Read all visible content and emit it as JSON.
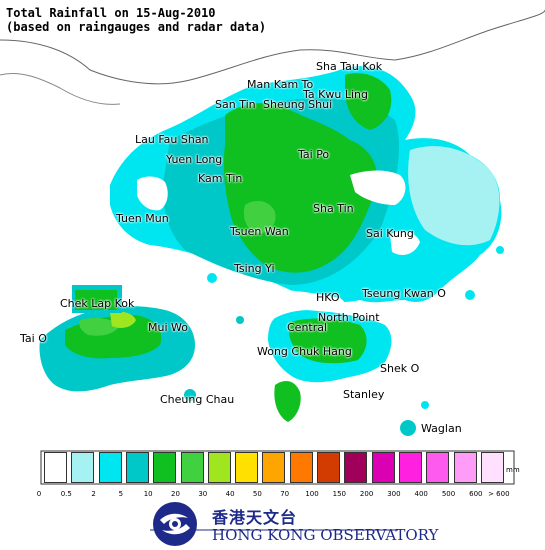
{
  "title": {
    "line1": "Total Rainfall on 15-Aug-2010",
    "line2": "(based on raingauges and radar data)"
  },
  "places": [
    {
      "name": "Sha Tau Kok"
    },
    {
      "name": "Man Kam To"
    },
    {
      "name": "Ta Kwu Ling"
    },
    {
      "name": "San Tin"
    },
    {
      "name": "Sheung Shui"
    },
    {
      "name": "Lau Fau Shan"
    },
    {
      "name": "Yuen Long"
    },
    {
      "name": "Tai Po"
    },
    {
      "name": "Kam Tin"
    },
    {
      "name": "Tuen Mun"
    },
    {
      "name": "Sha Tin"
    },
    {
      "name": "Tsuen Wan"
    },
    {
      "name": "Sai Kung"
    },
    {
      "name": "Tsing Yi"
    },
    {
      "name": "Chek Lap Kok"
    },
    {
      "name": "HKO"
    },
    {
      "name": "Tseung Kwan O"
    },
    {
      "name": "North Point"
    },
    {
      "name": "Central"
    },
    {
      "name": "Mui Wo"
    },
    {
      "name": "Tai O"
    },
    {
      "name": "Wong Chuk Hang"
    },
    {
      "name": "Shek O"
    },
    {
      "name": "Stanley"
    },
    {
      "name": "Cheung Chau"
    },
    {
      "name": "Waglan"
    }
  ],
  "legend": {
    "unit": "mm",
    "colors": [
      "#ffffff",
      "#a6f2f2",
      "#00e6f0",
      "#00c8c8",
      "#10c020",
      "#40d040",
      "#a0e620",
      "#ffe000",
      "#ffa500",
      "#ff7800",
      "#d23c00",
      "#a0005a",
      "#dc00b4",
      "#ff20e0",
      "#ff5af0",
      "#ff9cf8",
      "#ffe0ff"
    ],
    "ticks": [
      "0",
      "0.5",
      "2",
      "5",
      "10",
      "20",
      "30",
      "40",
      "50",
      "70",
      "100",
      "150",
      "200",
      "300",
      "400",
      "500",
      "600",
      "> 600"
    ]
  },
  "logo": {
    "chinese": "香港天文台",
    "english": "HONG KONG OBSERVATORY"
  }
}
